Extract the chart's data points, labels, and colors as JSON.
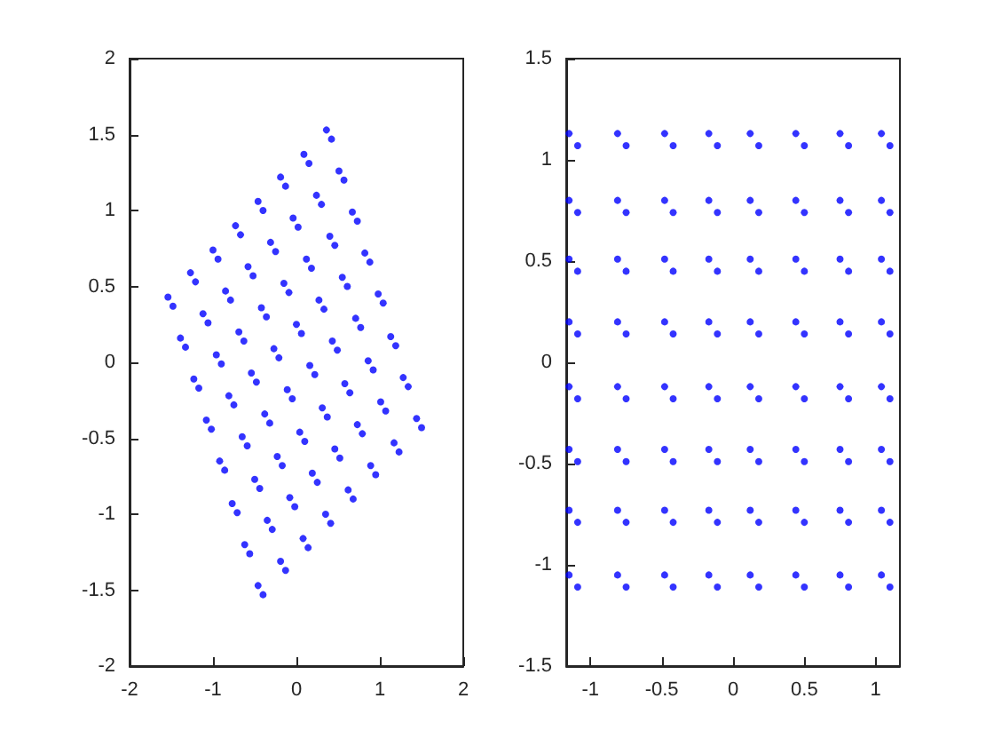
{
  "chart_data": [
    {
      "type": "scatter",
      "color": "#0000ff",
      "marker": "circle",
      "grid": false,
      "xlim": [
        -2,
        2
      ],
      "ylim": [
        -2,
        2
      ],
      "xticks": [
        -2,
        -1,
        0,
        1,
        2
      ],
      "yticks": [
        -2,
        -1.5,
        -1,
        -0.5,
        0,
        0.5,
        1,
        1.5,
        2
      ],
      "x": [
        -1.54,
        -1.48,
        -1.39,
        -1.33,
        -1.23,
        -1.17,
        -1.08,
        -1.02,
        -0.92,
        -0.86,
        -0.77,
        -0.71,
        -0.62,
        -0.56,
        -0.46,
        -0.4,
        -1.27,
        -1.21,
        -1.12,
        -1.06,
        -0.96,
        -0.9,
        -0.81,
        -0.75,
        -0.65,
        -0.59,
        -0.5,
        -0.44,
        -0.35,
        -0.29,
        -0.19,
        -0.13,
        -1.0,
        -0.94,
        -0.85,
        -0.79,
        -0.69,
        -0.63,
        -0.54,
        -0.48,
        -0.38,
        -0.32,
        -0.23,
        -0.17,
        -0.08,
        -0.02,
        0.08,
        0.14,
        -0.73,
        -0.67,
        -0.58,
        -0.52,
        -0.42,
        -0.36,
        -0.27,
        -0.21,
        -0.11,
        -0.05,
        0.04,
        0.1,
        0.19,
        0.25,
        0.35,
        0.41,
        -0.46,
        -0.4,
        -0.31,
        -0.25,
        -0.15,
        -0.09,
        0.0,
        0.06,
        0.16,
        0.22,
        0.31,
        0.37,
        0.46,
        0.52,
        0.62,
        0.68,
        -0.19,
        -0.13,
        -0.04,
        0.02,
        0.12,
        0.18,
        0.27,
        0.33,
        0.43,
        0.49,
        0.58,
        0.64,
        0.73,
        0.79,
        0.89,
        0.95,
        0.09,
        0.15,
        0.24,
        0.3,
        0.4,
        0.46,
        0.55,
        0.61,
        0.71,
        0.77,
        0.86,
        0.92,
        1.01,
        1.07,
        1.17,
        1.23,
        0.36,
        0.42,
        0.51,
        0.57,
        0.67,
        0.73,
        0.82,
        0.88,
        0.98,
        1.04,
        1.13,
        1.19,
        1.28,
        1.34,
        1.44,
        1.5
      ],
      "values": [
        0.43,
        0.37,
        0.16,
        0.1,
        -0.11,
        -0.17,
        -0.38,
        -0.44,
        -0.65,
        -0.71,
        -0.93,
        -0.99,
        -1.2,
        -1.26,
        -1.47,
        -1.53,
        0.59,
        0.53,
        0.32,
        0.26,
        0.05,
        -0.01,
        -0.22,
        -0.28,
        -0.49,
        -0.55,
        -0.77,
        -0.83,
        -1.04,
        -1.1,
        -1.31,
        -1.37,
        0.74,
        0.68,
        0.47,
        0.41,
        0.2,
        0.14,
        -0.07,
        -0.13,
        -0.34,
        -0.4,
        -0.62,
        -0.68,
        -0.89,
        -0.95,
        -1.16,
        -1.22,
        0.9,
        0.84,
        0.63,
        0.57,
        0.36,
        0.3,
        0.09,
        0.03,
        -0.18,
        -0.24,
        -0.46,
        -0.52,
        -0.73,
        -0.79,
        -1.0,
        -1.06,
        1.06,
        1.0,
        0.79,
        0.73,
        0.52,
        0.46,
        0.25,
        0.19,
        -0.02,
        -0.08,
        -0.3,
        -0.36,
        -0.57,
        -0.63,
        -0.84,
        -0.9,
        1.22,
        1.16,
        0.95,
        0.89,
        0.68,
        0.62,
        0.41,
        0.35,
        0.14,
        0.08,
        -0.14,
        -0.2,
        -0.41,
        -0.47,
        -0.68,
        -0.74,
        1.37,
        1.31,
        1.1,
        1.04,
        0.83,
        0.77,
        0.56,
        0.5,
        0.29,
        0.23,
        0.01,
        -0.05,
        -0.26,
        -0.32,
        -0.53,
        -0.59,
        1.53,
        1.47,
        1.26,
        1.2,
        0.99,
        0.93,
        0.72,
        0.66,
        0.45,
        0.39,
        0.17,
        0.11,
        -0.1,
        -0.16,
        -0.37,
        -0.43
      ]
    },
    {
      "type": "scatter",
      "color": "#0000ff",
      "marker": "circle",
      "grid": false,
      "xlim": [
        -1.17,
        1.17
      ],
      "ylim": [
        -1.5,
        1.5
      ],
      "xticks": [
        -1,
        -0.5,
        0,
        0.5,
        1
      ],
      "yticks": [
        -1.5,
        -1,
        -0.5,
        0,
        0.5,
        1,
        1.5
      ],
      "x": [
        -1.15,
        -1.09,
        -0.81,
        -0.75,
        -0.48,
        -0.42,
        -0.17,
        -0.11,
        0.12,
        0.18,
        0.44,
        0.5,
        0.75,
        0.81,
        1.04,
        1.1,
        -1.15,
        -1.09,
        -0.81,
        -0.75,
        -0.48,
        -0.42,
        -0.17,
        -0.11,
        0.12,
        0.18,
        0.44,
        0.5,
        0.75,
        0.81,
        1.04,
        1.1,
        -1.15,
        -1.09,
        -0.81,
        -0.75,
        -0.48,
        -0.42,
        -0.17,
        -0.11,
        0.12,
        0.18,
        0.44,
        0.5,
        0.75,
        0.81,
        1.04,
        1.1,
        -1.15,
        -1.09,
        -0.81,
        -0.75,
        -0.48,
        -0.42,
        -0.17,
        -0.11,
        0.12,
        0.18,
        0.44,
        0.5,
        0.75,
        0.81,
        1.04,
        1.1,
        -1.15,
        -1.09,
        -0.81,
        -0.75,
        -0.48,
        -0.42,
        -0.17,
        -0.11,
        0.12,
        0.18,
        0.44,
        0.5,
        0.75,
        0.81,
        1.04,
        1.1,
        -1.15,
        -1.09,
        -0.81,
        -0.75,
        -0.48,
        -0.42,
        -0.17,
        -0.11,
        0.12,
        0.18,
        0.44,
        0.5,
        0.75,
        0.81,
        1.04,
        1.1,
        -1.15,
        -1.09,
        -0.81,
        -0.75,
        -0.48,
        -0.42,
        -0.17,
        -0.11,
        0.12,
        0.18,
        0.44,
        0.5,
        0.75,
        0.81,
        1.04,
        1.1,
        -1.15,
        -1.09,
        -0.81,
        -0.75,
        -0.48,
        -0.42,
        -0.17,
        -0.11,
        0.12,
        0.18,
        0.44,
        0.5,
        0.75,
        0.81,
        1.04,
        1.1
      ],
      "values": [
        1.13,
        1.07,
        1.13,
        1.07,
        1.13,
        1.07,
        1.13,
        1.07,
        1.13,
        1.07,
        1.13,
        1.07,
        1.13,
        1.07,
        1.13,
        1.07,
        0.8,
        0.74,
        0.8,
        0.74,
        0.8,
        0.74,
        0.8,
        0.74,
        0.8,
        0.74,
        0.8,
        0.74,
        0.8,
        0.74,
        0.8,
        0.74,
        0.51,
        0.45,
        0.51,
        0.45,
        0.51,
        0.45,
        0.51,
        0.45,
        0.51,
        0.45,
        0.51,
        0.45,
        0.51,
        0.45,
        0.51,
        0.45,
        0.2,
        0.14,
        0.2,
        0.14,
        0.2,
        0.14,
        0.2,
        0.14,
        0.2,
        0.14,
        0.2,
        0.14,
        0.2,
        0.14,
        0.2,
        0.14,
        -0.12,
        -0.18,
        -0.12,
        -0.18,
        -0.12,
        -0.18,
        -0.12,
        -0.18,
        -0.12,
        -0.18,
        -0.12,
        -0.18,
        -0.12,
        -0.18,
        -0.12,
        -0.18,
        -0.43,
        -0.49,
        -0.43,
        -0.49,
        -0.43,
        -0.49,
        -0.43,
        -0.49,
        -0.43,
        -0.49,
        -0.43,
        -0.49,
        -0.43,
        -0.49,
        -0.43,
        -0.49,
        -0.73,
        -0.79,
        -0.73,
        -0.79,
        -0.73,
        -0.79,
        -0.73,
        -0.79,
        -0.73,
        -0.79,
        -0.73,
        -0.79,
        -0.73,
        -0.79,
        -0.73,
        -0.79,
        -1.05,
        -1.11,
        -1.05,
        -1.11,
        -1.05,
        -1.11,
        -1.05,
        -1.11,
        -1.05,
        -1.11,
        -1.05,
        -1.11,
        -1.05,
        -1.11,
        -1.05,
        -1.11
      ]
    }
  ]
}
